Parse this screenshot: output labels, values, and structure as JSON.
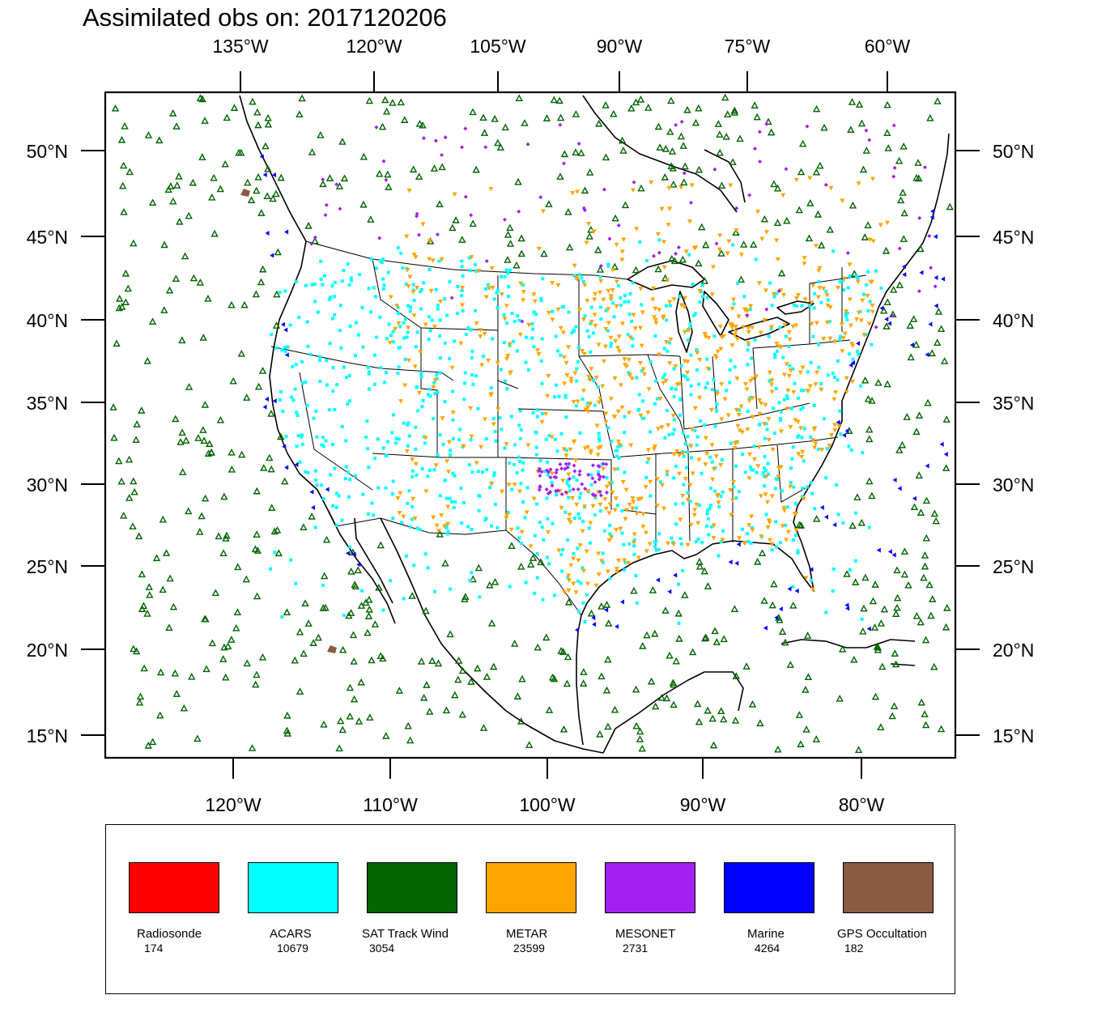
{
  "title": "Assimilated obs on: 2017120206",
  "top_axis": [
    "135°W",
    "120°W",
    "105°W",
    "90°W",
    "75°W",
    "60°W"
  ],
  "bottom_axis": [
    "120°W",
    "110°W",
    "100°W",
    "90°W",
    "80°W"
  ],
  "left_axis": [
    "50°N",
    "45°N",
    "40°N",
    "35°N",
    "30°N",
    "25°N",
    "20°N",
    "15°N"
  ],
  "right_axis": [
    "50°N",
    "45°N",
    "40°N",
    "35°N",
    "30°N",
    "25°N",
    "20°N",
    "15°N"
  ],
  "legend": [
    {
      "label": "Radiosonde",
      "count": "174",
      "color": "#ff0000"
    },
    {
      "label": "ACARS",
      "count": "10679",
      "color": "#00ffff"
    },
    {
      "label": "SAT Track Wind",
      "count": "3054",
      "color": "#006400"
    },
    {
      "label": "METAR",
      "count": "23599",
      "color": "#ffa500"
    },
    {
      "label": "MESONET",
      "count": "2731",
      "color": "#a020f0"
    },
    {
      "label": "Marine",
      "count": "4264",
      "color": "#0000ff"
    },
    {
      "label": "GPS Occultation",
      "count": "182",
      "color": "#8b5a44"
    }
  ]
}
